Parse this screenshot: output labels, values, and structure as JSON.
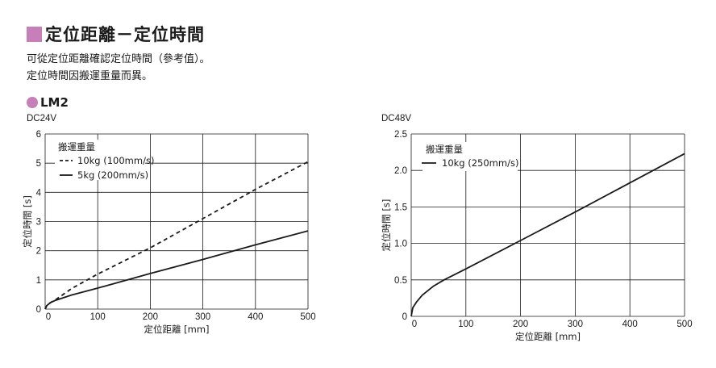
{
  "page": {
    "title": "定位距離－定位時間",
    "accent_color": "#c77fb9",
    "desc_lines": [
      "可從定位距離確認定位時間（參考值）。",
      "定位時間因搬運重量而異。"
    ],
    "model": "LM2"
  },
  "chart_data": [
    {
      "type": "line",
      "subtitle": "DC24V",
      "xlabel": "定位距離 [mm]",
      "ylabel": "定位時間 [s]",
      "xlim": [
        0,
        500
      ],
      "ylim": [
        0,
        6
      ],
      "xticks": [
        0,
        100,
        200,
        300,
        400,
        500
      ],
      "yticks": [
        0,
        1,
        2,
        3,
        4,
        5,
        6
      ],
      "xtick_labels": [
        "0",
        "100",
        "200",
        "300",
        "400",
        "500"
      ],
      "ytick_labels": [
        "0",
        "1",
        "2",
        "3",
        "4",
        "5",
        "6"
      ],
      "grid": true,
      "legend_title": "搬運重量",
      "legend_position": "top-left",
      "series": [
        {
          "name": "10kg (100mm/s)",
          "style": "dashed",
          "x": [
            0,
            3,
            10,
            20,
            50,
            100,
            200,
            300,
            400,
            500
          ],
          "y": [
            0,
            0.12,
            0.22,
            0.32,
            0.7,
            1.2,
            2.1,
            3.1,
            4.1,
            5.05
          ]
        },
        {
          "name": "5kg (200mm/s)",
          "style": "solid",
          "x": [
            0,
            3,
            10,
            20,
            50,
            100,
            200,
            300,
            400,
            500
          ],
          "y": [
            0,
            0.12,
            0.22,
            0.3,
            0.48,
            0.72,
            1.22,
            1.7,
            2.2,
            2.68
          ]
        }
      ]
    },
    {
      "type": "line",
      "subtitle": "DC48V",
      "xlabel": "定位距離 [mm]",
      "ylabel": "定位時間 [s]",
      "xlim": [
        0,
        500
      ],
      "ylim": [
        0,
        2.5
      ],
      "xticks": [
        0,
        100,
        200,
        300,
        400,
        500
      ],
      "yticks": [
        0,
        0.5,
        1.0,
        1.5,
        2.0,
        2.5
      ],
      "xtick_labels": [
        "0",
        "100",
        "200",
        "300",
        "400",
        "500"
      ],
      "ytick_labels": [
        "0",
        "0.5",
        "1.0",
        "1.5",
        "2.0",
        "2.5"
      ],
      "grid": true,
      "legend_title": "搬運重量",
      "legend_position": "top-left",
      "series": [
        {
          "name": "10kg (250mm/s)",
          "style": "solid",
          "x": [
            0,
            3,
            10,
            20,
            40,
            60,
            100,
            200,
            300,
            400,
            500
          ],
          "y": [
            0,
            0.12,
            0.2,
            0.29,
            0.41,
            0.5,
            0.65,
            1.04,
            1.43,
            1.83,
            2.23
          ]
        }
      ]
    }
  ]
}
